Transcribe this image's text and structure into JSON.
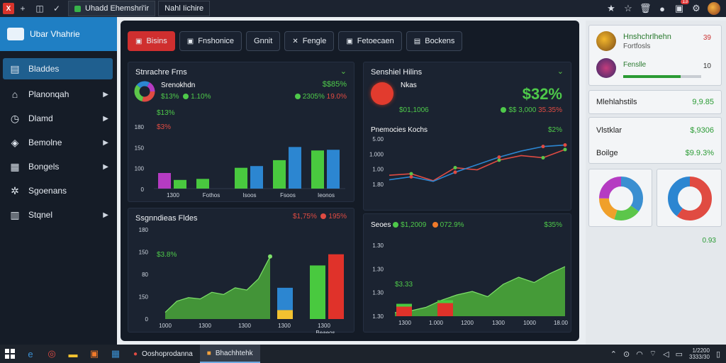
{
  "topbar": {
    "app_icon_label": "X",
    "buttons": [
      "+",
      "◫",
      "✓"
    ],
    "tabs": [
      {
        "label": "Uhadd Ehemshri'ir",
        "active": true
      },
      {
        "label": "Nahl Iichire",
        "active": false
      }
    ],
    "notification_badge": "13"
  },
  "sidebar": {
    "brand": "Ubar Vhahrie",
    "items": [
      {
        "label": "Bladdes",
        "icon": "dashboard-icon",
        "active": true,
        "chevron": false
      },
      {
        "label": "Planonqah",
        "icon": "home-icon",
        "active": false,
        "chevron": true
      },
      {
        "label": "Dlamd",
        "icon": "clock-icon",
        "active": false,
        "chevron": true
      },
      {
        "label": "Bemolne",
        "icon": "tag-icon",
        "active": false,
        "chevron": true
      },
      {
        "label": "Bongels",
        "icon": "document-icon",
        "active": false,
        "chevron": true
      },
      {
        "label": "Sgoenans",
        "icon": "users-icon",
        "active": false,
        "chevron": false
      },
      {
        "label": "Stqnel",
        "icon": "bars-icon",
        "active": false,
        "chevron": true
      }
    ]
  },
  "main_tabs": [
    {
      "label": "Bisins",
      "active": true
    },
    {
      "label": "Fnshonice",
      "active": false
    },
    {
      "label": "Gnnit",
      "active": false
    },
    {
      "label": "Fengle",
      "active": false
    },
    {
      "label": "Fetoecaen",
      "active": false
    },
    {
      "label": "Bockens",
      "active": false
    }
  ],
  "panels": {
    "top_left": {
      "title": "Stnrachre Frns",
      "legend_title": "Srenokhdn",
      "stat_a": "$$85%",
      "stat_b1": "$13%",
      "stat_b2": "1.10%",
      "stat_c1": "2305%",
      "stat_c2": "19.0%",
      "tag1": "$13%",
      "tag2": "$3%",
      "y_ticks": [
        "180",
        "150",
        "100",
        "0"
      ],
      "x_labels": [
        "1300",
        "Fothos",
        "Isoos",
        "Fsoos",
        "Ieonos"
      ]
    },
    "top_right": {
      "title": "Senshiel Hilins",
      "name": "Nkas",
      "big_value": "$32%",
      "sub1": "$01,1006",
      "sub2": "$$ 3,000",
      "sub3": "35.35%",
      "line_title": "Pnemocies Kochs",
      "line_stat": "$2%",
      "y_ticks": [
        "5.00",
        "1.000",
        "1.00",
        "1.80"
      ]
    },
    "bottom_left": {
      "title": "Ssgnndieas Fldes",
      "stat1": "$1,75%",
      "stat2": "195%",
      "tag": "$3.8%",
      "y_ticks": [
        "180",
        "150",
        "80",
        "150",
        "0"
      ],
      "x_labels": [
        "1000",
        "1300",
        "1300",
        "1300",
        "1300"
      ],
      "footer": "Beaeos"
    },
    "bottom_right": {
      "title": "Seoes",
      "stat1": "$1,2009",
      "stat2": "072.9%",
      "stat3": "$35%",
      "tag": "$3.33",
      "y_ticks": [
        "1.30",
        "1.30",
        "1.30",
        "1.30"
      ],
      "x_labels": [
        "1300",
        "1.000",
        "1200",
        "1300",
        "1000",
        "18.00"
      ]
    }
  },
  "right_panel": {
    "profile": {
      "name": "Hnshchrlhehn",
      "sub": "Fortfosls",
      "value1": "39",
      "label2": "Fenslle",
      "value2": "10",
      "progress": 0.74
    },
    "metric1": {
      "label": "Mlehlahstils",
      "value": "9,9.85"
    },
    "metric2": {
      "label": "Vlstklar",
      "value": "$,9306"
    },
    "metric3": {
      "label": "Boilge",
      "value": "$9.9.3%"
    },
    "footer_value": "0.93"
  },
  "taskbar": {
    "apps": [
      {
        "label": "Ooshoprodanna",
        "active": false
      },
      {
        "label": "Bhachhtehk",
        "active": true
      }
    ],
    "clock": {
      "time": "1/2200",
      "date": "3333/30"
    }
  },
  "chart_data": [
    {
      "type": "bar",
      "title": "Stnrachre Frns",
      "categories": [
        "1300",
        "Fothos",
        "Isoos",
        "Fsoos",
        "Ieonos"
      ],
      "series": [
        {
          "values": [
            45,
            0,
            0,
            0,
            0
          ]
        },
        {
          "values": [
            25,
            28,
            60,
            82,
            110
          ]
        },
        {
          "values": [
            0,
            0,
            65,
            120,
            112
          ]
        }
      ],
      "ylim": [
        0,
        180
      ],
      "colors": [
        "#b53bc2",
        "#49c93f",
        "#2c86d1"
      ]
    },
    {
      "type": "line",
      "title": "Pnemocies Kochs",
      "series": [
        {
          "values": [
            1.1,
            1.15,
            0.92,
            1.35,
            1.28,
            1.6,
            1.75,
            1.68,
            1.95
          ]
        },
        {
          "values": [
            0.95,
            1.05,
            0.9,
            1.2,
            1.45,
            1.7,
            1.9,
            2.05,
            2.1
          ]
        }
      ],
      "ylim": [
        0.8,
        2.3
      ],
      "colors": [
        "#e04b42",
        "#2c86d1"
      ]
    },
    {
      "type": "area",
      "title": "Ssgnndieas Fldes",
      "values": [
        15,
        40,
        48,
        45,
        60,
        55,
        70,
        65,
        90,
        140
      ],
      "bars": [
        {
          "values": [
            70,
            20
          ]
        },
        {
          "values": [
            120
          ]
        },
        {
          "values": [
            145
          ]
        }
      ],
      "ylim": [
        0,
        200
      ]
    },
    {
      "type": "area",
      "title": "Seoes",
      "values": [
        10,
        15,
        25,
        45,
        60,
        70,
        55,
        90,
        110,
        95,
        120,
        140
      ],
      "ylim": [
        0,
        200
      ]
    },
    {
      "type": "pie",
      "values": [
        35,
        20,
        20,
        25
      ],
      "colors": [
        "#3a8fd1",
        "#5cc64a",
        "#f0a02a",
        "#b53bc2"
      ]
    },
    {
      "type": "pie",
      "values": [
        60,
        40
      ],
      "colors": [
        "#e04b42",
        "#2c86d1"
      ]
    }
  ]
}
